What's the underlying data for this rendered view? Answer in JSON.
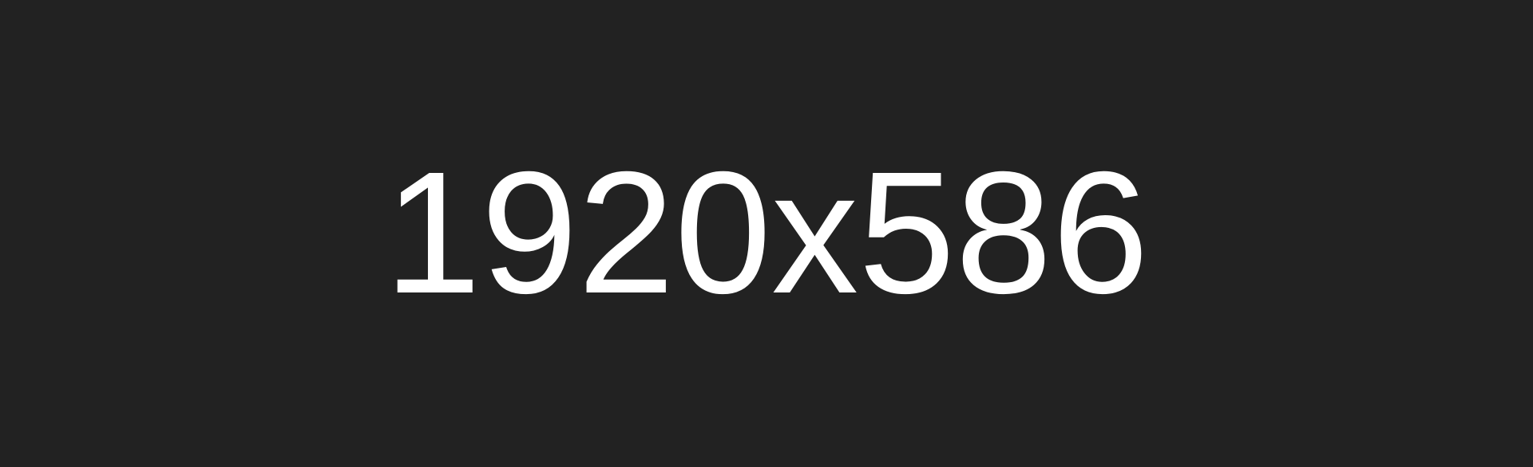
{
  "placeholder": {
    "text": "1920x586",
    "background_color": "#222222",
    "text_color": "#ffffff"
  }
}
